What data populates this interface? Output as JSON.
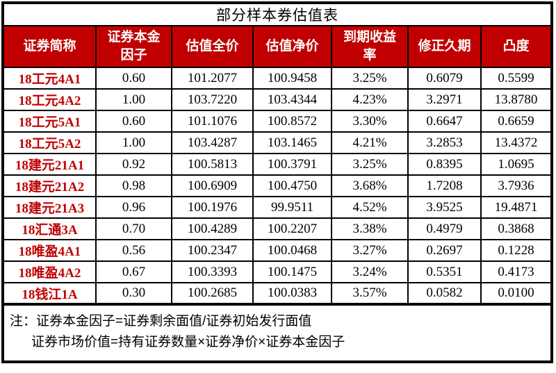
{
  "title": "部分样本券估值表",
  "colors": {
    "header_bg": "#C00000",
    "header_text": "#ffffff",
    "security_name_text": "#C00000",
    "border": "#000000",
    "data_text": "#000000"
  },
  "table": {
    "headers": [
      "证券简称",
      "证券本金\n因子",
      "估值全价",
      "估值净价",
      "到期收益\n率",
      "修正久期",
      "凸度"
    ],
    "rows": [
      [
        "18工元4A1",
        "0.60",
        "101.2077",
        "100.9458",
        "3.25%",
        "0.6079",
        "0.5599"
      ],
      [
        "18工元4A2",
        "1.00",
        "103.7220",
        "103.4344",
        "4.23%",
        "3.2971",
        "13.8780"
      ],
      [
        "18工元5A1",
        "0.60",
        "101.1076",
        "100.8572",
        "3.30%",
        "0.6647",
        "0.6659"
      ],
      [
        "18工元5A2",
        "1.00",
        "103.4287",
        "103.1465",
        "4.21%",
        "3.2853",
        "13.4372"
      ],
      [
        "18建元21A1",
        "0.92",
        "100.5813",
        "100.3791",
        "3.25%",
        "0.8395",
        "1.0695"
      ],
      [
        "18建元21A2",
        "0.98",
        "100.6909",
        "100.4750",
        "3.68%",
        "1.7208",
        "3.7936"
      ],
      [
        "18建元21A3",
        "0.96",
        "100.1976",
        "99.9511",
        "4.52%",
        "3.9525",
        "19.4871"
      ],
      [
        "18汇通3A",
        "0.70",
        "100.4289",
        "100.2207",
        "3.38%",
        "0.4979",
        "0.3868"
      ],
      [
        "18唯盈4A1",
        "0.56",
        "100.2347",
        "100.0468",
        "3.27%",
        "0.2697",
        "0.1228"
      ],
      [
        "18唯盈4A2",
        "0.67",
        "100.3393",
        "100.1475",
        "3.24%",
        "0.5351",
        "0.4173"
      ],
      [
        "18钱江1A",
        "0.30",
        "100.2685",
        "100.0383",
        "3.57%",
        "0.0582",
        "0.0100"
      ]
    ]
  },
  "notes": {
    "line1": "注：证券本金因子=证券剩余面值/证券初始发行面值",
    "line2": "证券市场价值=持有证券数量×证券净价×证券本金因子"
  }
}
